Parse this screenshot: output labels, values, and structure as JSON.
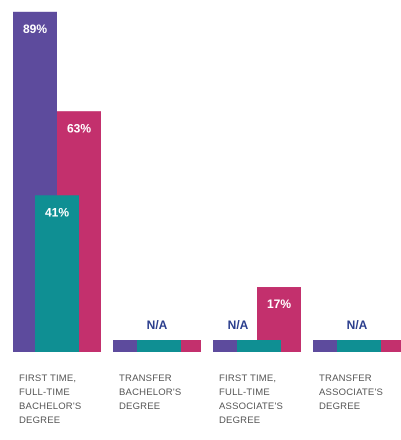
{
  "chart_data": {
    "type": "bar",
    "categories": [
      "FIRST TIME,\nFULL-TIME\nBACHELOR'S\nDEGREE",
      "TRANSFER\nBACHELOR'S\nDEGREE",
      "FIRST TIME,\nFULL-TIME\nASSOCIATE'S\nDEGREE",
      "TRANSFER\nASSOCIATE'S\nDEGREE"
    ],
    "series": [
      {
        "color": "#5d4b9d",
        "values": [
          89,
          null,
          null,
          null
        ],
        "value_labels": [
          "89%",
          null,
          null,
          null
        ]
      },
      {
        "color": "#0f8f93",
        "values": [
          41,
          null,
          null,
          null
        ],
        "value_labels": [
          "41%",
          null,
          null,
          null
        ]
      },
      {
        "color": "#c3306d",
        "values": [
          63,
          null,
          17,
          null
        ],
        "value_labels": [
          "63%",
          null,
          "17%",
          null
        ]
      }
    ],
    "missing_labels": [
      null,
      "N/A",
      "N/A",
      "N/A"
    ],
    "ylim": [
      0,
      90
    ]
  }
}
